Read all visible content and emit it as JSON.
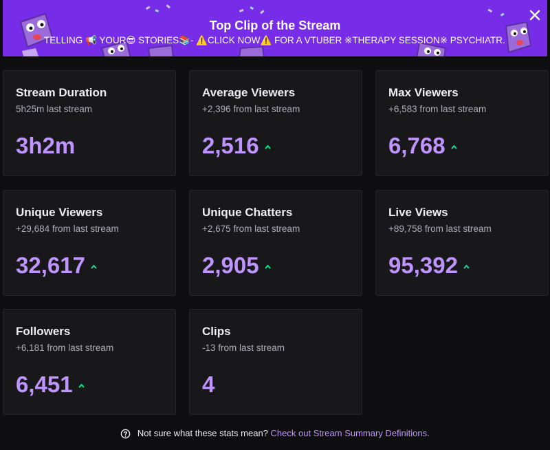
{
  "banner": {
    "title": "Top Clip of the Stream",
    "subtitle": "TELLING 📢 YOUR😎 STORIES📚- ⚠️CLICK NOW⚠️ FOR A VTUBER ※THERAPY SESSION※ PSYCHIATR...",
    "accent": "#772ce8"
  },
  "stats": [
    {
      "label": "Stream Duration",
      "sub": "5h25m last stream",
      "value": "3h2m",
      "trend": ""
    },
    {
      "label": "Average Viewers",
      "sub": "+2,396 from last stream",
      "value": "2,516",
      "trend": "up"
    },
    {
      "label": "Max Viewers",
      "sub": "+6,583 from last stream",
      "value": "6,768",
      "trend": "up"
    },
    {
      "label": "Unique Viewers",
      "sub": "+29,684 from last stream",
      "value": "32,617",
      "trend": "up"
    },
    {
      "label": "Unique Chatters",
      "sub": "+2,675 from last stream",
      "value": "2,905",
      "trend": "up"
    },
    {
      "label": "Live Views",
      "sub": "+89,758 from last stream",
      "value": "95,392",
      "trend": "up"
    },
    {
      "label": "Followers",
      "sub": "+6,181 from last stream",
      "value": "6,451",
      "trend": "up"
    },
    {
      "label": "Clips",
      "sub": "-13 from last stream",
      "value": "4",
      "trend": ""
    }
  ],
  "footer": {
    "question": "Not sure what these stats mean?",
    "link": "Check out Stream Summary Definitions."
  },
  "colors": {
    "value": "#bf94ff",
    "trend_up": "#00f593",
    "card_bg": "#18181b"
  }
}
